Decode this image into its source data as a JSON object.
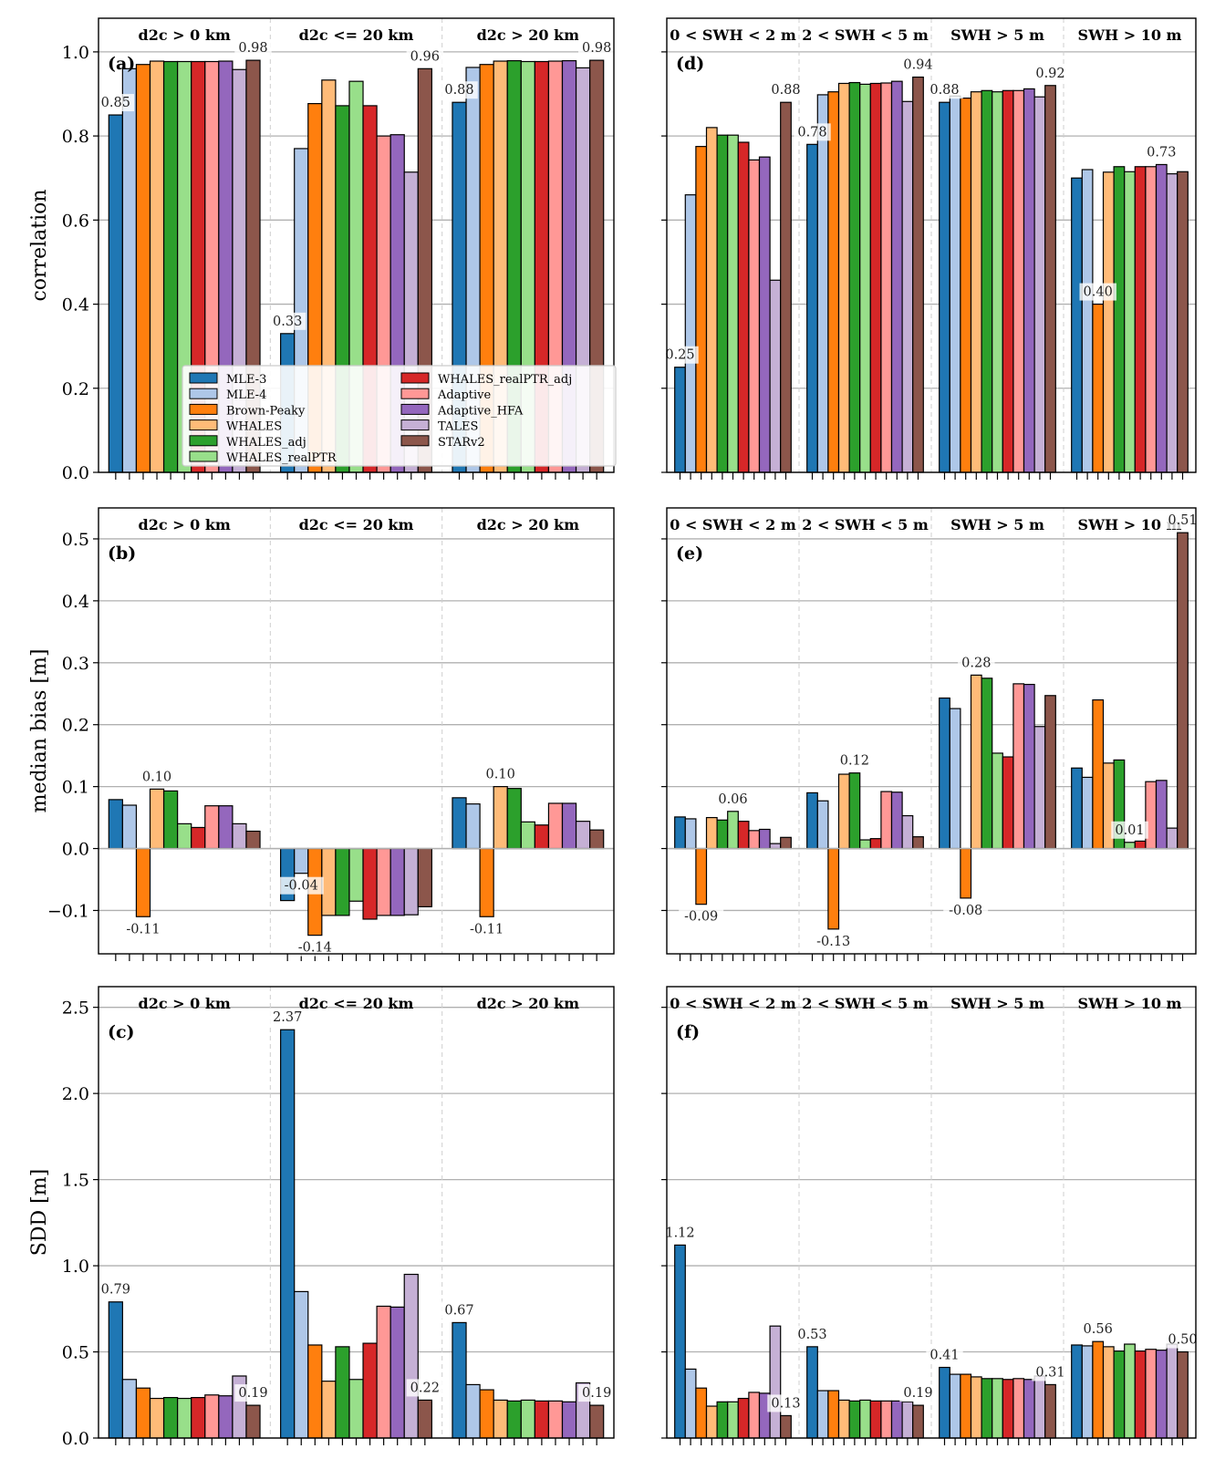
{
  "legend": [
    "MLE-3",
    "MLE-4",
    "Brown-Peaky",
    "WHALES",
    "WHALES_adj",
    "WHALES_realPTR",
    "WHALES_realPTR_adj",
    "Adaptive",
    "Adaptive_HFA",
    "TALES",
    "STARv2"
  ],
  "colors": [
    "#1f77b4",
    "#aec7e8",
    "#ff7f0e",
    "#ffbb78",
    "#2ca02c",
    "#98df8a",
    "#d62728",
    "#ff9896",
    "#9467bd",
    "#c5b0d5",
    "#8c564b"
  ],
  "chart_data": [
    {
      "id": "a",
      "type": "bar",
      "label": "(a)",
      "ylabel": "correlation",
      "ylim": [
        0,
        1.08
      ],
      "yticks": [
        0.0,
        0.2,
        0.4,
        0.6,
        0.8,
        1.0
      ],
      "yticklabels": [
        "0.0",
        "0.2",
        "0.4",
        "0.6",
        "0.8",
        "1.0"
      ],
      "groups": [
        "d2c > 0 km",
        "d2c <= 20 km",
        "d2c > 20 km"
      ],
      "values": [
        [
          0.85,
          0.96,
          0.97,
          0.978,
          0.977,
          0.977,
          0.977,
          0.977,
          0.978,
          0.958,
          0.98
        ],
        [
          0.33,
          0.77,
          0.877,
          0.933,
          0.872,
          0.93,
          0.872,
          0.8,
          0.803,
          0.714,
          0.96
        ],
        [
          0.88,
          0.963,
          0.97,
          0.978,
          0.979,
          0.977,
          0.977,
          0.978,
          0.979,
          0.962,
          0.98
        ]
      ],
      "annotations": [
        [
          "0.85",
          "0.98"
        ],
        [
          "0.33",
          "0.96"
        ],
        [
          "0.88",
          "0.98"
        ]
      ],
      "annotation_bars": [
        [
          0,
          10
        ],
        [
          0,
          10
        ],
        [
          0,
          10
        ]
      ]
    },
    {
      "id": "b",
      "type": "bar",
      "label": "(b)",
      "ylabel": "median bias [m]",
      "ylim": [
        -0.17,
        0.55
      ],
      "yticks": [
        -0.1,
        0.0,
        0.1,
        0.2,
        0.3,
        0.4,
        0.5
      ],
      "yticklabels": [
        "−0.1",
        "0.0",
        "0.1",
        "0.2",
        "0.3",
        "0.4",
        "0.5"
      ],
      "groups": [
        "d2c > 0 km",
        "d2c <= 20 km",
        "d2c > 20 km"
      ],
      "values": [
        [
          0.079,
          0.07,
          -0.11,
          0.096,
          0.093,
          0.04,
          0.034,
          0.069,
          0.069,
          0.04,
          0.028
        ],
        [
          -0.084,
          -0.04,
          -0.14,
          -0.108,
          -0.108,
          -0.085,
          -0.114,
          -0.108,
          -0.108,
          -0.107,
          -0.094
        ],
        [
          0.082,
          0.072,
          -0.11,
          0.1,
          0.097,
          0.043,
          0.038,
          0.073,
          0.073,
          0.044,
          0.03
        ]
      ],
      "annotations": [
        [
          "0.10",
          "-0.11"
        ],
        [
          "-0.04",
          "-0.14"
        ],
        [
          "0.10",
          "-0.11"
        ]
      ],
      "annotation_bars": [
        [
          3,
          2
        ],
        [
          1,
          2
        ],
        [
          3,
          2
        ]
      ]
    },
    {
      "id": "c",
      "type": "bar",
      "label": "(c)",
      "ylabel": "SDD [m]",
      "ylim": [
        0,
        2.62
      ],
      "yticks": [
        0.0,
        0.5,
        1.0,
        1.5,
        2.0,
        2.5
      ],
      "yticklabels": [
        "0.0",
        "0.5",
        "1.0",
        "1.5",
        "2.0",
        "2.5"
      ],
      "groups": [
        "d2c > 0 km",
        "d2c <= 20 km",
        "d2c > 20 km"
      ],
      "values": [
        [
          0.79,
          0.34,
          0.29,
          0.23,
          0.235,
          0.23,
          0.235,
          0.25,
          0.245,
          0.36,
          0.19
        ],
        [
          2.37,
          0.85,
          0.54,
          0.33,
          0.53,
          0.34,
          0.55,
          0.765,
          0.76,
          0.95,
          0.22
        ],
        [
          0.67,
          0.31,
          0.28,
          0.22,
          0.215,
          0.22,
          0.215,
          0.215,
          0.21,
          0.32,
          0.19
        ]
      ],
      "annotations": [
        [
          "0.79",
          "0.19"
        ],
        [
          "2.37",
          "0.22"
        ],
        [
          "0.67",
          "0.19"
        ]
      ],
      "annotation_bars": [
        [
          0,
          10
        ],
        [
          0,
          10
        ],
        [
          0,
          10
        ]
      ]
    },
    {
      "id": "d",
      "type": "bar",
      "label": "(d)",
      "ylabel": "",
      "ylim": [
        0,
        1.08
      ],
      "yticks": [
        0.0,
        0.2,
        0.4,
        0.6,
        0.8,
        1.0
      ],
      "yticklabels": [],
      "groups": [
        "0 < SWH < 2 m",
        "2 < SWH < 5 m",
        "SWH > 5 m",
        "SWH > 10 m"
      ],
      "values": [
        [
          0.25,
          0.66,
          0.775,
          0.82,
          0.802,
          0.802,
          0.785,
          0.743,
          0.75,
          0.457,
          0.88
        ],
        [
          0.78,
          0.898,
          0.905,
          0.925,
          0.927,
          0.923,
          0.925,
          0.926,
          0.93,
          0.882,
          0.94
        ],
        [
          0.88,
          0.895,
          0.89,
          0.905,
          0.908,
          0.905,
          0.908,
          0.908,
          0.912,
          0.893,
          0.92
        ],
        [
          0.7,
          0.72,
          0.4,
          0.714,
          0.727,
          0.715,
          0.727,
          0.727,
          0.732,
          0.71,
          0.715
        ]
      ],
      "annotations": [
        [
          "0.25",
          "0.88"
        ],
        [
          "0.78",
          "0.94"
        ],
        [
          "0.88",
          "0.92"
        ],
        [
          "0.40",
          "0.73"
        ]
      ],
      "annotation_bars": [
        [
          0,
          10
        ],
        [
          0,
          10
        ],
        [
          0,
          10
        ],
        [
          2,
          8
        ]
      ]
    },
    {
      "id": "e",
      "type": "bar",
      "label": "(e)",
      "ylabel": "",
      "ylim": [
        -0.17,
        0.55
      ],
      "yticks": [
        -0.1,
        0.0,
        0.1,
        0.2,
        0.3,
        0.4,
        0.5
      ],
      "yticklabels": [],
      "groups": [
        "0 < SWH < 2 m",
        "2 < SWH < 5 m",
        "SWH > 5 m",
        "SWH > 10 m"
      ],
      "values": [
        [
          0.051,
          0.048,
          -0.09,
          0.05,
          0.046,
          0.06,
          0.044,
          0.029,
          0.031,
          0.008,
          0.018
        ],
        [
          0.09,
          0.077,
          -0.13,
          0.12,
          0.122,
          0.014,
          0.016,
          0.092,
          0.091,
          0.053,
          0.019
        ],
        [
          0.243,
          0.226,
          -0.08,
          0.28,
          0.275,
          0.154,
          0.148,
          0.266,
          0.265,
          0.197,
          0.247
        ],
        [
          0.13,
          0.115,
          0.24,
          0.138,
          0.143,
          0.01,
          0.012,
          0.108,
          0.11,
          0.033,
          0.51
        ]
      ],
      "annotations": [
        [
          "0.06",
          "-0.09"
        ],
        [
          "0.12",
          "-0.13"
        ],
        [
          "0.28",
          "-0.08"
        ],
        [
          "0.01",
          "0.51"
        ]
      ],
      "annotation_bars": [
        [
          5,
          2
        ],
        [
          4,
          2
        ],
        [
          3,
          2
        ],
        [
          5,
          10
        ]
      ]
    },
    {
      "id": "f",
      "type": "bar",
      "label": "(f)",
      "ylabel": "",
      "ylim": [
        0,
        2.62
      ],
      "yticks": [
        0.0,
        0.5,
        1.0,
        1.5,
        2.0,
        2.5
      ],
      "yticklabels": [],
      "groups": [
        "0 < SWH < 2 m",
        "2 < SWH < 5 m",
        "SWH > 5 m",
        "SWH > 10 m"
      ],
      "values": [
        [
          1.12,
          0.4,
          0.29,
          0.185,
          0.21,
          0.21,
          0.23,
          0.265,
          0.26,
          0.65,
          0.13
        ],
        [
          0.53,
          0.275,
          0.275,
          0.22,
          0.215,
          0.22,
          0.215,
          0.215,
          0.215,
          0.21,
          0.19
        ],
        [
          0.41,
          0.37,
          0.37,
          0.355,
          0.345,
          0.345,
          0.34,
          0.345,
          0.34,
          0.36,
          0.31
        ],
        [
          0.54,
          0.535,
          0.56,
          0.53,
          0.505,
          0.545,
          0.505,
          0.515,
          0.51,
          0.545,
          0.5
        ]
      ],
      "annotations": [
        [
          "1.12",
          "0.13"
        ],
        [
          "0.53",
          "0.19"
        ],
        [
          "0.41",
          "0.31"
        ],
        [
          "0.56",
          "0.50"
        ]
      ],
      "annotation_bars": [
        [
          0,
          10
        ],
        [
          0,
          10
        ],
        [
          0,
          10
        ],
        [
          2,
          10
        ]
      ]
    }
  ]
}
